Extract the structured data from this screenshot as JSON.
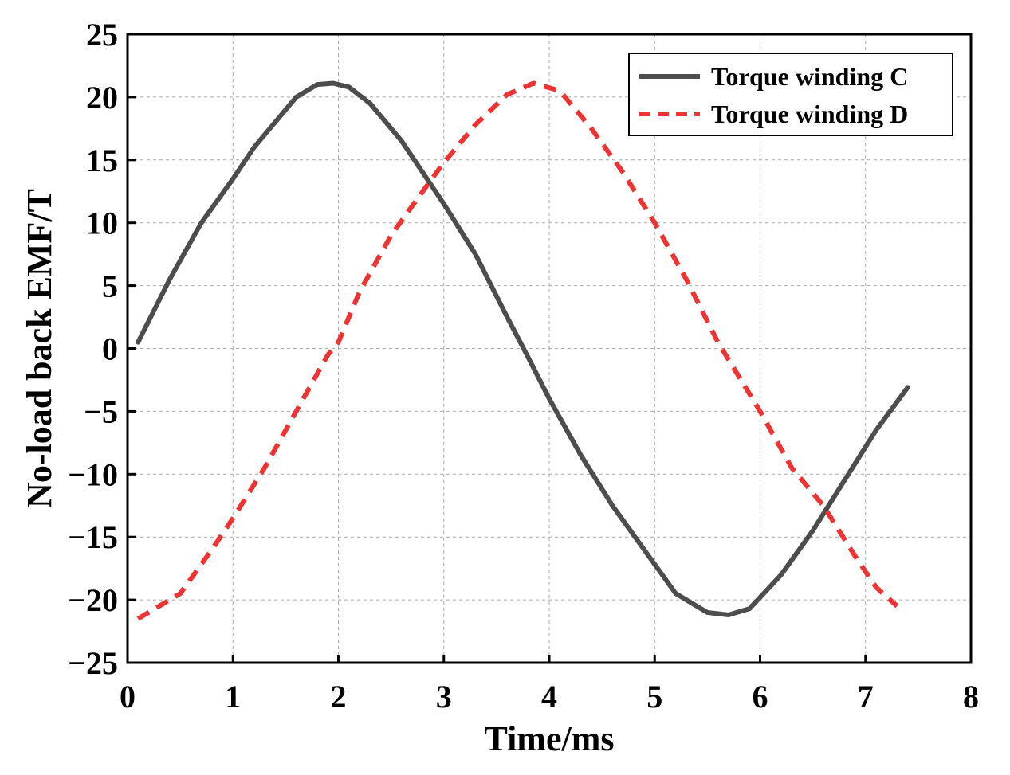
{
  "chart_data": {
    "type": "line",
    "title": "",
    "xlabel": "Time/ms",
    "ylabel": "No-load back EMF/T",
    "xlim": [
      0,
      8
    ],
    "ylim": [
      -25,
      25
    ],
    "xticks": [
      0,
      1,
      2,
      3,
      4,
      5,
      6,
      7,
      8
    ],
    "xtick_labels": [
      "0",
      "1",
      "2",
      "3",
      "4",
      "5",
      "6",
      "7",
      "8"
    ],
    "yticks": [
      -25,
      -20,
      -15,
      -10,
      -5,
      0,
      5,
      10,
      15,
      20,
      25
    ],
    "ytick_labels": [
      "−25",
      "−20",
      "−15",
      "−10",
      "−5",
      "0",
      "5",
      "10",
      "15",
      "20",
      "25"
    ],
    "grid": true,
    "legend_position": "top-right",
    "series": [
      {
        "name": "Torque winding C",
        "color": "#4d4d4d",
        "style": "solid",
        "x": [
          0.1,
          0.4,
          0.7,
          1.0,
          1.2,
          1.4,
          1.6,
          1.8,
          1.95,
          2.1,
          2.3,
          2.6,
          3.0,
          3.3,
          3.6,
          3.8,
          4.0,
          4.3,
          4.6,
          4.9,
          5.2,
          5.5,
          5.7,
          5.9,
          6.2,
          6.5,
          6.8,
          7.1,
          7.4
        ],
        "values": [
          0.5,
          5.5,
          10.0,
          13.5,
          16.0,
          18.0,
          20.0,
          21.0,
          21.1,
          20.8,
          19.5,
          16.5,
          11.5,
          7.5,
          2.5,
          -0.7,
          -4.0,
          -8.5,
          -12.5,
          -16.0,
          -19.5,
          -21.0,
          -21.2,
          -20.7,
          -18.0,
          -14.5,
          -10.5,
          -6.5,
          -3.1
        ]
      },
      {
        "name": "Torque winding D",
        "color": "#ee3333",
        "style": "dashed",
        "x": [
          0.1,
          0.5,
          0.8,
          1.0,
          1.3,
          1.6,
          1.9,
          2.0,
          2.2,
          2.5,
          2.8,
          3.0,
          3.3,
          3.6,
          3.85,
          4.1,
          4.4,
          4.7,
          5.0,
          5.3,
          5.6,
          6.0,
          6.3,
          6.6,
          6.9,
          7.1,
          7.3
        ],
        "values": [
          -21.5,
          -19.5,
          -16.0,
          -13.5,
          -9.5,
          -5.0,
          -0.5,
          0.5,
          4.5,
          9.0,
          12.5,
          14.8,
          17.8,
          20.2,
          21.1,
          20.5,
          17.5,
          14.0,
          10.0,
          5.5,
          0.5,
          -5.0,
          -9.5,
          -12.5,
          -16.5,
          -19.0,
          -20.5
        ]
      }
    ]
  }
}
